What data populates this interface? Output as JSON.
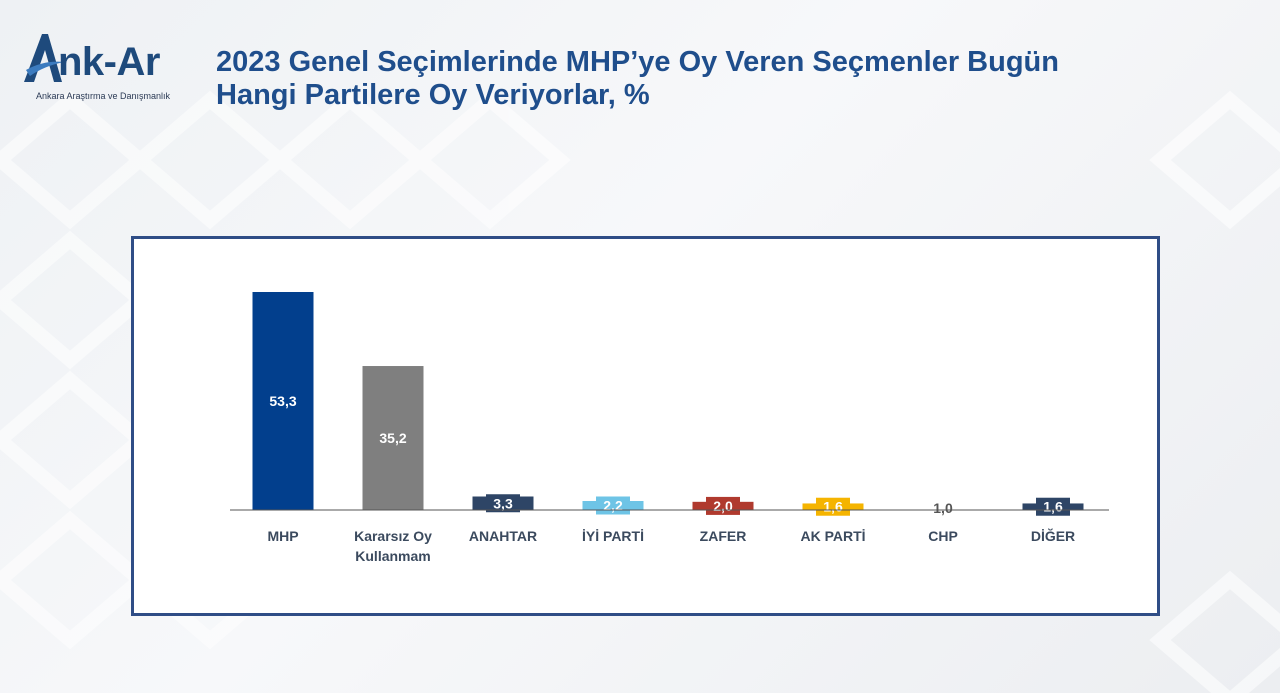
{
  "logo": {
    "brand": "nk-Ar",
    "subtitle": "Ankara Araştırma ve Danışmanlık"
  },
  "chart_data": {
    "type": "bar",
    "title_lines": [
      "2023 Genel Seçimlerinde MHP’ye Oy Veren Seçmenler Bugün",
      "Hangi Partilere Oy Veriyorlar, %"
    ],
    "categories": [
      [
        "MHP"
      ],
      [
        "Kararsız Oy",
        "Kullanmam"
      ],
      [
        "ANAHTAR"
      ],
      [
        "İYİ PARTİ"
      ],
      [
        "ZAFER"
      ],
      [
        "AK PARTİ"
      ],
      [
        "CHP"
      ],
      [
        "DİĞER"
      ]
    ],
    "values": [
      53.3,
      35.2,
      3.3,
      2.2,
      2.0,
      1.6,
      1.0,
      1.6
    ],
    "value_labels": [
      "53,3",
      "35,2",
      "3,3",
      "2,2",
      "2,0",
      "1,6",
      "1,0",
      "1,6"
    ],
    "colors": [
      "#023f8d",
      "#7f7f7f",
      "#2e4566",
      "#6ec4e6",
      "#b03a2e",
      "#f5b400",
      "#ffffff",
      "#2e4566"
    ],
    "label_colors": [
      "#ffffff",
      "#ffffff",
      "#ffffff",
      "#ffffff",
      "#ffffff",
      "#ffffff",
      "#555555",
      "#ffffff"
    ],
    "ylim": [
      0,
      60
    ],
    "xlabel": "",
    "ylabel": "",
    "grid": false,
    "legend": "none"
  }
}
